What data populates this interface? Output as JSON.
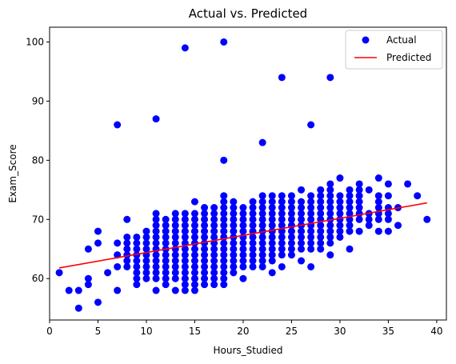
{
  "chart_data": {
    "type": "scatter",
    "title": "Actual vs. Predicted",
    "xlabel": "Hours_Studied",
    "ylabel": "Exam_Score",
    "xlim": [
      0,
      41
    ],
    "ylim": [
      53,
      102.5
    ],
    "x_ticks": [
      "0",
      "5",
      "10",
      "15",
      "20",
      "25",
      "30",
      "35",
      "40"
    ],
    "y_ticks": [
      "60",
      "70",
      "80",
      "90",
      "100"
    ],
    "grid": false,
    "legend_placement": "top-right",
    "series": [
      {
        "name": "Actual",
        "kind": "scatter",
        "color": "#0000ff",
        "points": [
          [
            1,
            61
          ],
          [
            2,
            58
          ],
          [
            3,
            55
          ],
          [
            3,
            58
          ],
          [
            4,
            59
          ],
          [
            4,
            60
          ],
          [
            4,
            65
          ],
          [
            5,
            56
          ],
          [
            5,
            66
          ],
          [
            5,
            68
          ],
          [
            6,
            61
          ],
          [
            7,
            58
          ],
          [
            7,
            62
          ],
          [
            7,
            64
          ],
          [
            7,
            66
          ],
          [
            7,
            86
          ],
          [
            8,
            62
          ],
          [
            8,
            63
          ],
          [
            8,
            64
          ],
          [
            8,
            65
          ],
          [
            8,
            66
          ],
          [
            8,
            67
          ],
          [
            8,
            70
          ],
          [
            9,
            59
          ],
          [
            9,
            60
          ],
          [
            9,
            61
          ],
          [
            9,
            62
          ],
          [
            9,
            63
          ],
          [
            9,
            64
          ],
          [
            9,
            65
          ],
          [
            9,
            66
          ],
          [
            9,
            67
          ],
          [
            10,
            60
          ],
          [
            10,
            61
          ],
          [
            10,
            62
          ],
          [
            10,
            63
          ],
          [
            10,
            64
          ],
          [
            10,
            65
          ],
          [
            10,
            66
          ],
          [
            10,
            67
          ],
          [
            10,
            68
          ],
          [
            11,
            58
          ],
          [
            11,
            60
          ],
          [
            11,
            61
          ],
          [
            11,
            62
          ],
          [
            11,
            63
          ],
          [
            11,
            64
          ],
          [
            11,
            65
          ],
          [
            11,
            66
          ],
          [
            11,
            67
          ],
          [
            11,
            68
          ],
          [
            11,
            69
          ],
          [
            11,
            70
          ],
          [
            11,
            71
          ],
          [
            11,
            87
          ],
          [
            12,
            59
          ],
          [
            12,
            60
          ],
          [
            12,
            61
          ],
          [
            12,
            62
          ],
          [
            12,
            63
          ],
          [
            12,
            64
          ],
          [
            12,
            65
          ],
          [
            12,
            66
          ],
          [
            12,
            67
          ],
          [
            12,
            68
          ],
          [
            12,
            69
          ],
          [
            12,
            70
          ],
          [
            13,
            58
          ],
          [
            13,
            60
          ],
          [
            13,
            61
          ],
          [
            13,
            62
          ],
          [
            13,
            63
          ],
          [
            13,
            64
          ],
          [
            13,
            65
          ],
          [
            13,
            66
          ],
          [
            13,
            67
          ],
          [
            13,
            68
          ],
          [
            13,
            69
          ],
          [
            13,
            70
          ],
          [
            13,
            71
          ],
          [
            14,
            58
          ],
          [
            14,
            59
          ],
          [
            14,
            60
          ],
          [
            14,
            61
          ],
          [
            14,
            62
          ],
          [
            14,
            63
          ],
          [
            14,
            64
          ],
          [
            14,
            65
          ],
          [
            14,
            66
          ],
          [
            14,
            67
          ],
          [
            14,
            68
          ],
          [
            14,
            69
          ],
          [
            14,
            70
          ],
          [
            14,
            71
          ],
          [
            14,
            99
          ],
          [
            15,
            58
          ],
          [
            15,
            59
          ],
          [
            15,
            60
          ],
          [
            15,
            61
          ],
          [
            15,
            62
          ],
          [
            15,
            63
          ],
          [
            15,
            64
          ],
          [
            15,
            65
          ],
          [
            15,
            66
          ],
          [
            15,
            67
          ],
          [
            15,
            68
          ],
          [
            15,
            69
          ],
          [
            15,
            70
          ],
          [
            15,
            71
          ],
          [
            15,
            73
          ],
          [
            16,
            59
          ],
          [
            16,
            60
          ],
          [
            16,
            61
          ],
          [
            16,
            62
          ],
          [
            16,
            63
          ],
          [
            16,
            64
          ],
          [
            16,
            65
          ],
          [
            16,
            66
          ],
          [
            16,
            67
          ],
          [
            16,
            68
          ],
          [
            16,
            69
          ],
          [
            16,
            70
          ],
          [
            16,
            71
          ],
          [
            16,
            72
          ],
          [
            17,
            59
          ],
          [
            17,
            60
          ],
          [
            17,
            61
          ],
          [
            17,
            62
          ],
          [
            17,
            63
          ],
          [
            17,
            64
          ],
          [
            17,
            65
          ],
          [
            17,
            66
          ],
          [
            17,
            67
          ],
          [
            17,
            68
          ],
          [
            17,
            69
          ],
          [
            17,
            70
          ],
          [
            17,
            71
          ],
          [
            17,
            72
          ],
          [
            18,
            59
          ],
          [
            18,
            60
          ],
          [
            18,
            61
          ],
          [
            18,
            62
          ],
          [
            18,
            63
          ],
          [
            18,
            64
          ],
          [
            18,
            65
          ],
          [
            18,
            66
          ],
          [
            18,
            67
          ],
          [
            18,
            68
          ],
          [
            18,
            69
          ],
          [
            18,
            70
          ],
          [
            18,
            71
          ],
          [
            18,
            72
          ],
          [
            18,
            73
          ],
          [
            18,
            74
          ],
          [
            18,
            80
          ],
          [
            18,
            100
          ],
          [
            19,
            61
          ],
          [
            19,
            62
          ],
          [
            19,
            63
          ],
          [
            19,
            64
          ],
          [
            19,
            65
          ],
          [
            19,
            66
          ],
          [
            19,
            67
          ],
          [
            19,
            68
          ],
          [
            19,
            69
          ],
          [
            19,
            70
          ],
          [
            19,
            71
          ],
          [
            19,
            72
          ],
          [
            19,
            73
          ],
          [
            20,
            60
          ],
          [
            20,
            62
          ],
          [
            20,
            63
          ],
          [
            20,
            64
          ],
          [
            20,
            65
          ],
          [
            20,
            66
          ],
          [
            20,
            67
          ],
          [
            20,
            68
          ],
          [
            20,
            69
          ],
          [
            20,
            70
          ],
          [
            20,
            71
          ],
          [
            20,
            72
          ],
          [
            21,
            62
          ],
          [
            21,
            63
          ],
          [
            21,
            64
          ],
          [
            21,
            65
          ],
          [
            21,
            66
          ],
          [
            21,
            67
          ],
          [
            21,
            68
          ],
          [
            21,
            69
          ],
          [
            21,
            70
          ],
          [
            21,
            71
          ],
          [
            21,
            72
          ],
          [
            21,
            73
          ],
          [
            22,
            62
          ],
          [
            22,
            63
          ],
          [
            22,
            64
          ],
          [
            22,
            65
          ],
          [
            22,
            66
          ],
          [
            22,
            67
          ],
          [
            22,
            68
          ],
          [
            22,
            69
          ],
          [
            22,
            70
          ],
          [
            22,
            71
          ],
          [
            22,
            72
          ],
          [
            22,
            73
          ],
          [
            22,
            74
          ],
          [
            22,
            83
          ],
          [
            23,
            61
          ],
          [
            23,
            63
          ],
          [
            23,
            64
          ],
          [
            23,
            65
          ],
          [
            23,
            66
          ],
          [
            23,
            67
          ],
          [
            23,
            68
          ],
          [
            23,
            69
          ],
          [
            23,
            70
          ],
          [
            23,
            71
          ],
          [
            23,
            72
          ],
          [
            23,
            73
          ],
          [
            23,
            74
          ],
          [
            24,
            62
          ],
          [
            24,
            64
          ],
          [
            24,
            65
          ],
          [
            24,
            66
          ],
          [
            24,
            67
          ],
          [
            24,
            68
          ],
          [
            24,
            69
          ],
          [
            24,
            70
          ],
          [
            24,
            71
          ],
          [
            24,
            72
          ],
          [
            24,
            73
          ],
          [
            24,
            74
          ],
          [
            24,
            94
          ],
          [
            25,
            64
          ],
          [
            25,
            65
          ],
          [
            25,
            66
          ],
          [
            25,
            67
          ],
          [
            25,
            68
          ],
          [
            25,
            69
          ],
          [
            25,
            70
          ],
          [
            25,
            71
          ],
          [
            25,
            72
          ],
          [
            25,
            73
          ],
          [
            25,
            74
          ],
          [
            26,
            63
          ],
          [
            26,
            65
          ],
          [
            26,
            66
          ],
          [
            26,
            67
          ],
          [
            26,
            68
          ],
          [
            26,
            69
          ],
          [
            26,
            70
          ],
          [
            26,
            71
          ],
          [
            26,
            72
          ],
          [
            26,
            73
          ],
          [
            26,
            75
          ],
          [
            27,
            62
          ],
          [
            27,
            65
          ],
          [
            27,
            66
          ],
          [
            27,
            67
          ],
          [
            27,
            68
          ],
          [
            27,
            69
          ],
          [
            27,
            70
          ],
          [
            27,
            71
          ],
          [
            27,
            72
          ],
          [
            27,
            73
          ],
          [
            27,
            74
          ],
          [
            27,
            86
          ],
          [
            28,
            65
          ],
          [
            28,
            66
          ],
          [
            28,
            67
          ],
          [
            28,
            68
          ],
          [
            28,
            69
          ],
          [
            28,
            70
          ],
          [
            28,
            71
          ],
          [
            28,
            72
          ],
          [
            28,
            73
          ],
          [
            28,
            74
          ],
          [
            28,
            75
          ],
          [
            29,
            64
          ],
          [
            29,
            66
          ],
          [
            29,
            67
          ],
          [
            29,
            68
          ],
          [
            29,
            69
          ],
          [
            29,
            70
          ],
          [
            29,
            71
          ],
          [
            29,
            72
          ],
          [
            29,
            73
          ],
          [
            29,
            74
          ],
          [
            29,
            75
          ],
          [
            29,
            76
          ],
          [
            29,
            94
          ],
          [
            30,
            67
          ],
          [
            30,
            68
          ],
          [
            30,
            69
          ],
          [
            30,
            70
          ],
          [
            30,
            71
          ],
          [
            30,
            72
          ],
          [
            30,
            73
          ],
          [
            30,
            74
          ],
          [
            30,
            77
          ],
          [
            31,
            65
          ],
          [
            31,
            68
          ],
          [
            31,
            69
          ],
          [
            31,
            70
          ],
          [
            31,
            71
          ],
          [
            31,
            72
          ],
          [
            31,
            73
          ],
          [
            31,
            74
          ],
          [
            31,
            75
          ],
          [
            32,
            68
          ],
          [
            32,
            70
          ],
          [
            32,
            71
          ],
          [
            32,
            72
          ],
          [
            32,
            73
          ],
          [
            32,
            74
          ],
          [
            32,
            75
          ],
          [
            32,
            76
          ],
          [
            33,
            69
          ],
          [
            33,
            70
          ],
          [
            33,
            71
          ],
          [
            33,
            75
          ],
          [
            34,
            68
          ],
          [
            34,
            70
          ],
          [
            34,
            71
          ],
          [
            34,
            72
          ],
          [
            34,
            73
          ],
          [
            34,
            74
          ],
          [
            34,
            77
          ],
          [
            35,
            68
          ],
          [
            35,
            70
          ],
          [
            35,
            71
          ],
          [
            35,
            72
          ],
          [
            35,
            74
          ],
          [
            35,
            76
          ],
          [
            36,
            69
          ],
          [
            36,
            72
          ],
          [
            37,
            76
          ],
          [
            38,
            74
          ],
          [
            39,
            70
          ]
        ]
      },
      {
        "name": "Predicted",
        "kind": "line",
        "color": "#ff0000",
        "points": [
          [
            1,
            61.8
          ],
          [
            39,
            72.8
          ]
        ]
      }
    ]
  }
}
